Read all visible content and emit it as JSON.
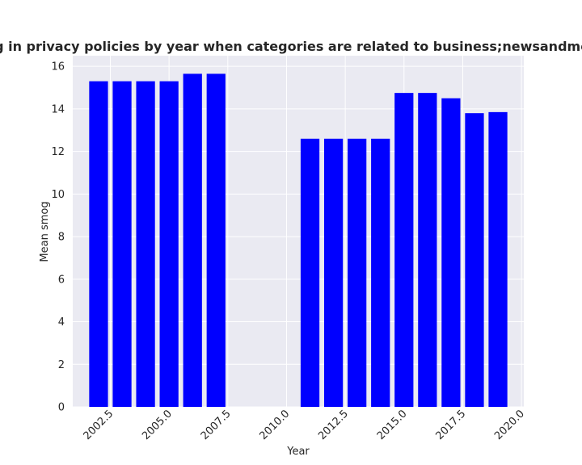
{
  "chart_data": {
    "type": "bar",
    "title": "Mean smog in privacy policies by year when categories are related to business;newsandmedia;vehicles",
    "xlabel": "Year",
    "ylabel": "Mean smog",
    "x": [
      2002,
      2003,
      2004,
      2005,
      2006,
      2007,
      2011,
      2012,
      2013,
      2014,
      2015,
      2016,
      2017,
      2018,
      2019
    ],
    "values": [
      15.3,
      15.3,
      15.3,
      15.3,
      15.65,
      15.65,
      12.6,
      12.6,
      12.6,
      12.6,
      14.75,
      14.75,
      14.5,
      13.8,
      13.85
    ],
    "xlim": [
      2000.9,
      2020.1
    ],
    "ylim": [
      0,
      16.5
    ],
    "xticks": [
      2002.5,
      2005.0,
      2007.5,
      2010.0,
      2012.5,
      2015.0,
      2017.5,
      2020.0
    ],
    "xtick_labels": [
      "2002.5",
      "2005.0",
      "2007.5",
      "2010.0",
      "2012.5",
      "2015.0",
      "2017.5",
      "2020.0"
    ],
    "yticks": [
      0,
      2,
      4,
      6,
      8,
      10,
      12,
      14,
      16
    ],
    "ytick_labels": [
      "0",
      "2",
      "4",
      "6",
      "8",
      "10",
      "12",
      "14",
      "16"
    ],
    "bar_color": "#0000ff",
    "grid": true,
    "background": "#eaeaf2",
    "legend": "none"
  }
}
